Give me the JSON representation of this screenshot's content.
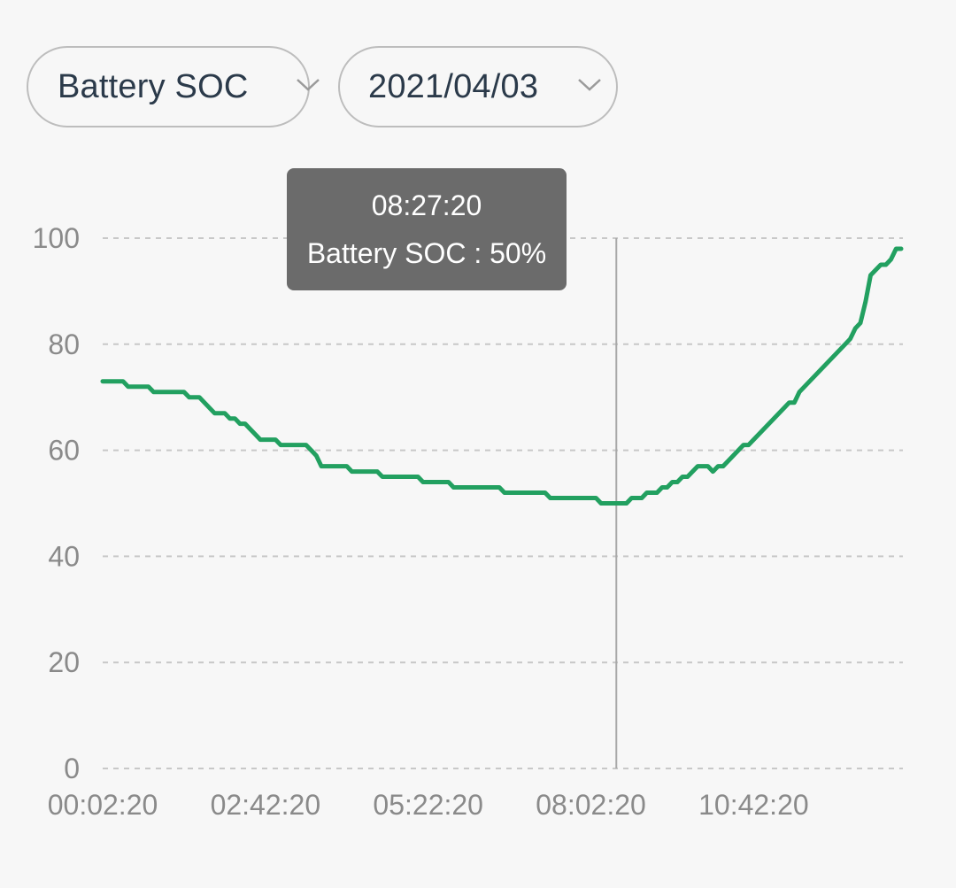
{
  "filters": {
    "metric": {
      "label": "Battery SOC",
      "icon": "chevron-down-icon"
    },
    "date": {
      "label": "2021/04/03",
      "icon": "chevron-down-icon"
    }
  },
  "tooltip": {
    "time": "08:27:20",
    "value_text": "Battery SOC : 50%"
  },
  "colors": {
    "line": "#22a060",
    "grid": "#c8c8c8",
    "crosshair": "#a8a8a8",
    "tooltip_bg": "#6b6b6b"
  },
  "chart_data": {
    "type": "line",
    "title": "",
    "xlabel": "",
    "ylabel": "",
    "ylim": [
      0,
      100
    ],
    "yticks": [
      "0",
      "20",
      "40",
      "60",
      "80",
      "100"
    ],
    "xticks": [
      "00:02:20",
      "02:42:20",
      "05:22:20",
      "08:02:20",
      "10:42:20"
    ],
    "grid": true,
    "crosshair_x": "08:27:20",
    "series": [
      {
        "name": "Battery SOC",
        "unit": "%",
        "points": [
          [
            "00:02:20",
            73
          ],
          [
            "00:22:20",
            73
          ],
          [
            "00:27:20",
            72
          ],
          [
            "00:47:20",
            72
          ],
          [
            "00:52:20",
            71
          ],
          [
            "01:22:20",
            71
          ],
          [
            "01:27:20",
            70
          ],
          [
            "01:37:20",
            70
          ],
          [
            "01:42:20",
            69
          ],
          [
            "01:52:20",
            67
          ],
          [
            "02:02:20",
            67
          ],
          [
            "02:07:20",
            66
          ],
          [
            "02:12:20",
            66
          ],
          [
            "02:17:20",
            65
          ],
          [
            "02:22:20",
            65
          ],
          [
            "02:27:20",
            64
          ],
          [
            "02:32:20",
            63
          ],
          [
            "02:37:20",
            62
          ],
          [
            "02:52:20",
            62
          ],
          [
            "02:57:20",
            61
          ],
          [
            "03:22:20",
            61
          ],
          [
            "03:27:20",
            60
          ],
          [
            "03:32:20",
            59
          ],
          [
            "03:37:20",
            57
          ],
          [
            "04:02:20",
            57
          ],
          [
            "04:07:20",
            56
          ],
          [
            "04:32:20",
            56
          ],
          [
            "04:37:20",
            55
          ],
          [
            "05:12:20",
            55
          ],
          [
            "05:17:20",
            54
          ],
          [
            "05:42:20",
            54
          ],
          [
            "05:47:20",
            53
          ],
          [
            "06:32:20",
            53
          ],
          [
            "06:37:20",
            52
          ],
          [
            "07:17:20",
            52
          ],
          [
            "07:22:20",
            51
          ],
          [
            "08:07:20",
            51
          ],
          [
            "08:12:20",
            50
          ],
          [
            "08:37:20",
            50
          ],
          [
            "08:42:20",
            51
          ],
          [
            "08:52:20",
            51
          ],
          [
            "08:57:20",
            52
          ],
          [
            "09:07:20",
            52
          ],
          [
            "09:12:20",
            53
          ],
          [
            "09:17:20",
            53
          ],
          [
            "09:22:20",
            54
          ],
          [
            "09:27:20",
            54
          ],
          [
            "09:32:20",
            55
          ],
          [
            "09:37:20",
            55
          ],
          [
            "09:47:20",
            57
          ],
          [
            "09:57:20",
            57
          ],
          [
            "10:02:20",
            56
          ],
          [
            "10:07:20",
            57
          ],
          [
            "10:12:20",
            57
          ],
          [
            "10:32:20",
            61
          ],
          [
            "10:37:20",
            61
          ],
          [
            "11:17:20",
            69
          ],
          [
            "11:22:20",
            69
          ],
          [
            "11:27:20",
            71
          ],
          [
            "12:12:20",
            80
          ],
          [
            "12:17:20",
            81
          ],
          [
            "12:22:20",
            83
          ],
          [
            "12:27:20",
            84
          ],
          [
            "12:32:20",
            88
          ],
          [
            "12:37:20",
            93
          ],
          [
            "12:42:20",
            94
          ],
          [
            "12:47:20",
            95
          ],
          [
            "12:52:20",
            95
          ],
          [
            "12:57:20",
            96
          ],
          [
            "13:02:20",
            98
          ],
          [
            "13:07:20",
            98
          ]
        ]
      }
    ]
  }
}
